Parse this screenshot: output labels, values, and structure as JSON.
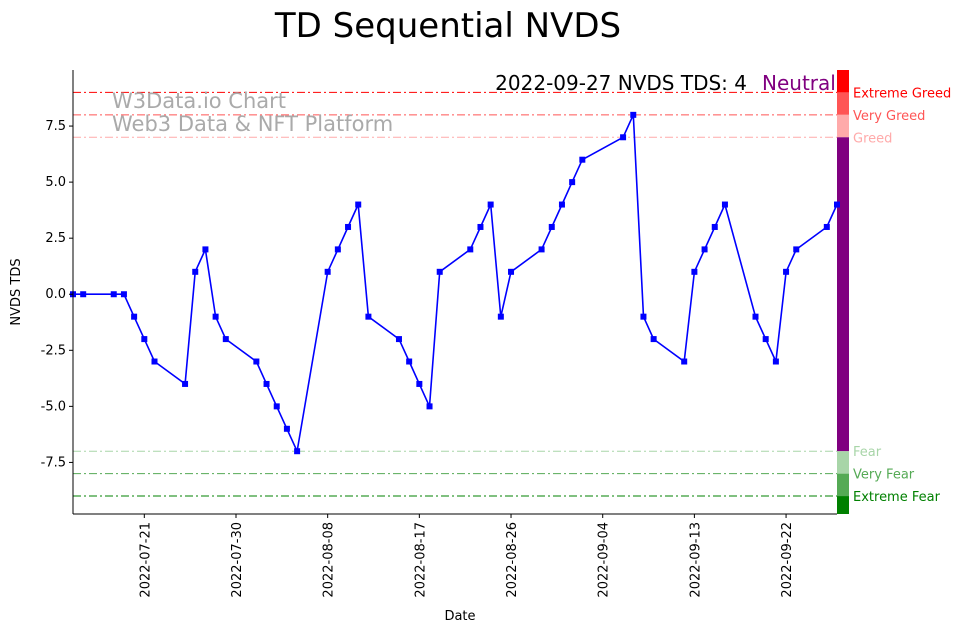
{
  "chart_data": {
    "type": "line",
    "title": "TD Sequential NVDS",
    "xlabel": "Date",
    "ylabel": "NVDS TDS",
    "ylim": [
      -9.8,
      10
    ],
    "xlim": [
      "2022-07-14",
      "2022-09-27"
    ],
    "x_ticks": [
      "2022-07-21",
      "2022-07-30",
      "2022-08-08",
      "2022-08-17",
      "2022-08-26",
      "2022-09-04",
      "2022-09-13",
      "2022-09-22"
    ],
    "y_ticks": [
      "-7.5",
      "-5.0",
      "-2.5",
      "0.0",
      "2.5",
      "5.0",
      "7.5"
    ],
    "y_tick_values": [
      -7.5,
      -5,
      -2.5,
      0,
      2.5,
      5,
      7.5
    ],
    "series": [
      {
        "name": "NVDS TDS",
        "color": "#0000ff",
        "x": [
          "2022-07-14",
          "2022-07-15",
          "2022-07-18",
          "2022-07-19",
          "2022-07-20",
          "2022-07-21",
          "2022-07-22",
          "2022-07-25",
          "2022-07-26",
          "2022-07-27",
          "2022-07-28",
          "2022-07-29",
          "2022-08-01",
          "2022-08-02",
          "2022-08-03",
          "2022-08-04",
          "2022-08-05",
          "2022-08-08",
          "2022-08-09",
          "2022-08-10",
          "2022-08-11",
          "2022-08-12",
          "2022-08-15",
          "2022-08-16",
          "2022-08-17",
          "2022-08-18",
          "2022-08-19",
          "2022-08-22",
          "2022-08-23",
          "2022-08-24",
          "2022-08-25",
          "2022-08-26",
          "2022-08-29",
          "2022-08-30",
          "2022-08-31",
          "2022-09-01",
          "2022-09-02",
          "2022-09-06",
          "2022-09-07",
          "2022-09-08",
          "2022-09-09",
          "2022-09-12",
          "2022-09-13",
          "2022-09-14",
          "2022-09-15",
          "2022-09-16",
          "2022-09-19",
          "2022-09-20",
          "2022-09-21",
          "2022-09-22",
          "2022-09-23",
          "2022-09-26",
          "2022-09-27"
        ],
        "values": [
          0,
          0,
          0,
          0,
          -1,
          -2,
          -3,
          -4,
          1,
          2,
          -1,
          -2,
          -3,
          -4,
          -5,
          -6,
          -7,
          1,
          2,
          3,
          4,
          -1,
          -2,
          -3,
          -4,
          -5,
          1,
          2,
          3,
          4,
          -1,
          1,
          2,
          3,
          4,
          5,
          6,
          7,
          8,
          -1,
          -2,
          -3,
          1,
          2,
          3,
          4,
          -1,
          -2,
          -3,
          1,
          2,
          3,
          4
        ]
      }
    ],
    "levels": [
      {
        "name": "Extreme Greed",
        "value": 9,
        "color": "#ff0000"
      },
      {
        "name": "Very Greed",
        "value": 8,
        "color": "#ff5555"
      },
      {
        "name": "Greed",
        "value": 7,
        "color": "#ffaaaa"
      },
      {
        "name": "Fear",
        "value": -7,
        "color": "#a8d5a8"
      },
      {
        "name": "Very Fear",
        "value": -8,
        "color": "#55aa55"
      },
      {
        "name": "Extreme Fear",
        "value": -9,
        "color": "#008000"
      }
    ],
    "sentiment_bar": [
      {
        "from": 9,
        "to": 10,
        "color": "#ff0000"
      },
      {
        "from": 8,
        "to": 9,
        "color": "#ff5555"
      },
      {
        "from": 7,
        "to": 8,
        "color": "#ffaaaa"
      },
      {
        "from": -7,
        "to": 7,
        "color": "#800080"
      },
      {
        "from": -8,
        "to": -7,
        "color": "#a8d5a8"
      },
      {
        "from": -9,
        "to": -8,
        "color": "#55aa55"
      },
      {
        "from": -9.8,
        "to": -9,
        "color": "#008000"
      }
    ],
    "status_date_label": "2022-09-27 NVDS TDS: 4",
    "status_sentiment": "Neutral",
    "watermark": [
      "W3Data.io Chart",
      "Web3 Data & NFT Platform"
    ]
  }
}
